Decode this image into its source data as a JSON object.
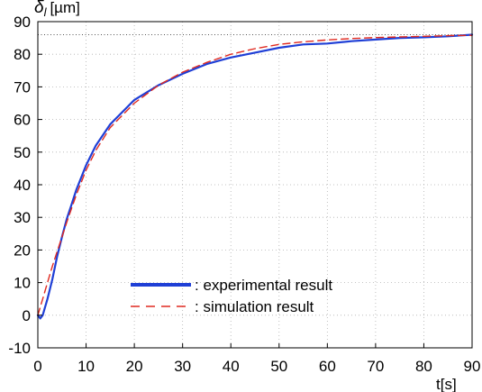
{
  "chart_data": {
    "type": "line",
    "ylabel_symbol": "δ",
    "ylabel_subscript": "l",
    "ylabel_unit": "[µm]",
    "xlabel": "t[s]",
    "xlim": [
      0,
      90
    ],
    "ylim": [
      -10,
      90
    ],
    "xticks": [
      0,
      10,
      20,
      30,
      40,
      50,
      60,
      70,
      80,
      90
    ],
    "yticks": [
      -10,
      0,
      10,
      20,
      30,
      40,
      50,
      60,
      70,
      80,
      90
    ],
    "grid": true,
    "reference_line": {
      "y": 86,
      "style": "dotted",
      "color": "#555555"
    },
    "legend_position": "lower-center",
    "series": [
      {
        "name": ": experimental result",
        "color": "#1f3fd6",
        "style": "solid",
        "x": [
          0,
          0.5,
          1,
          2,
          3,
          4,
          5,
          6,
          7,
          8,
          10,
          12,
          15,
          20,
          25,
          30,
          35,
          40,
          45,
          50,
          55,
          60,
          65,
          70,
          75,
          80,
          85,
          90
        ],
        "values": [
          0,
          -1,
          0,
          5,
          11,
          18,
          24,
          29.5,
          34,
          38.5,
          46,
          52,
          58.5,
          66,
          70.5,
          74,
          77,
          79,
          80.5,
          82,
          83,
          83.3,
          84,
          84.5,
          85,
          85.2,
          85.5,
          86
        ]
      },
      {
        "name": ": simulation result",
        "color": "#e02a20",
        "style": "dashed",
        "x": [
          0,
          1,
          2,
          3,
          4,
          5,
          6,
          8,
          10,
          12,
          15,
          20,
          25,
          30,
          35,
          40,
          45,
          50,
          55,
          60,
          65,
          70,
          75,
          80,
          85,
          90
        ],
        "values": [
          0,
          5,
          10,
          15,
          19.5,
          24,
          28.5,
          37,
          44.5,
          50.5,
          57.5,
          65,
          70.5,
          74.5,
          77.5,
          80,
          81.7,
          83,
          83.8,
          84.4,
          84.8,
          85.1,
          85.3,
          85.5,
          85.7,
          85.8
        ]
      }
    ]
  }
}
